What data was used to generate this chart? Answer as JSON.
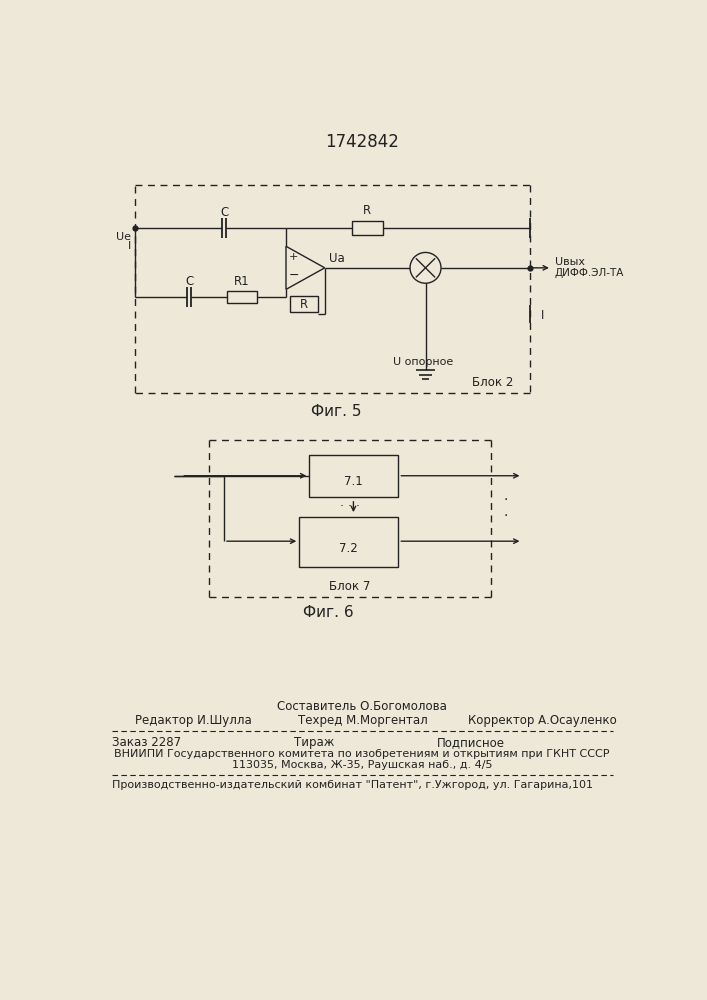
{
  "title": "1742842",
  "bg_color": "#ede8d8",
  "fig5_label": "Фиг. 5",
  "fig6_label": "Фиг. 6",
  "fig5_block_label": "Блок 2",
  "fig6_block_label": "Блок 7",
  "footer": {
    "line1": "Составитель О.Богомолова",
    "line2_left": "Редактор И.Шулла",
    "line2_mid": "Техред М.Моргентал",
    "line2_right": "Корректор А.Осауленко",
    "line3_left": "Заказ 2287",
    "line3_mid": "Тираж",
    "line3_right": "Подписное",
    "line4": "ВНИИПИ Государственного комитета по изобретениям и открытиям при ГКНТ СССР",
    "line5": "113035, Москва, Ж-35, Раушская наб., д. 4/5",
    "line6": "Производственно-издательский комбинат \"Патент\", г.Ужгород, ул. Гагарина,101"
  }
}
